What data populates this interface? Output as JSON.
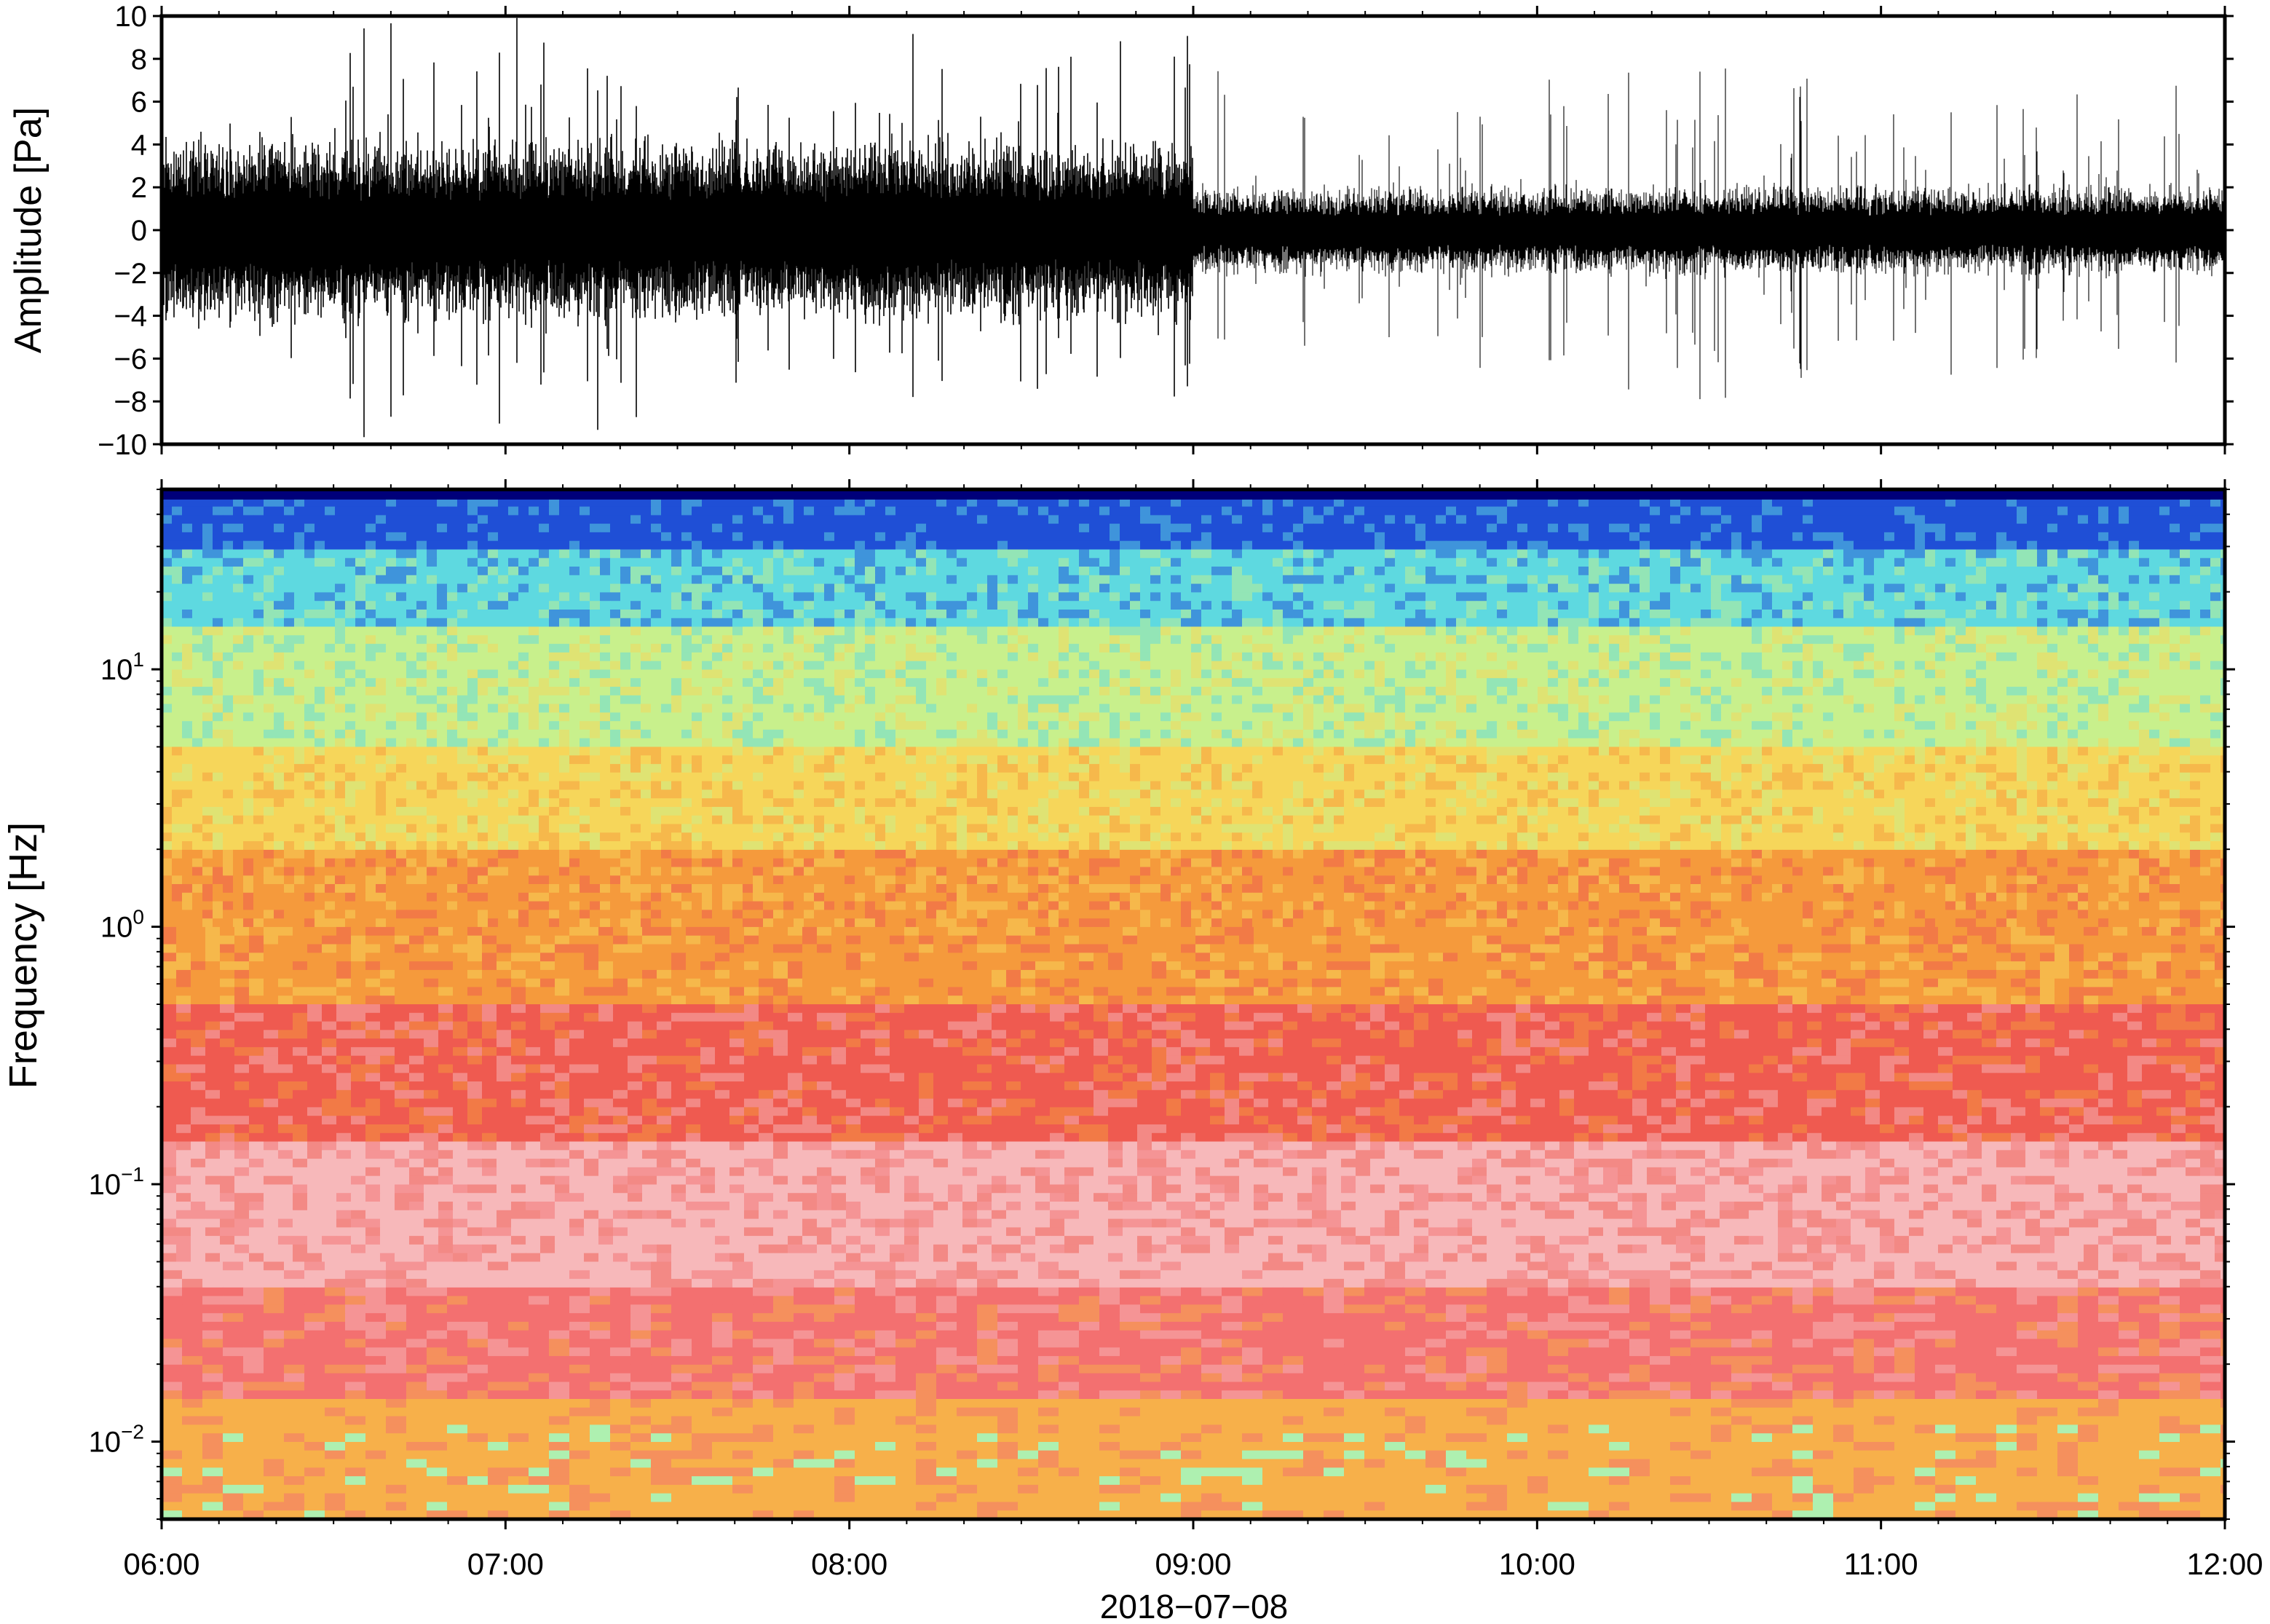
{
  "chart_data": [
    {
      "type": "line",
      "panel": "waveform",
      "ylabel": "Amplitude [Pa]",
      "ylim": [
        -10,
        10
      ],
      "yticks": [
        -10,
        -8,
        -6,
        -4,
        -2,
        0,
        2,
        4,
        6,
        8,
        10
      ],
      "ytick_labels": [
        "−10",
        "−8",
        "−6",
        "−4",
        "−2",
        "0",
        "2",
        "4",
        "6",
        "8",
        "10"
      ],
      "xlim": [
        "06:00",
        "12:00"
      ],
      "series": [
        {
          "segments": [
            {
              "from": "06:00",
              "to": "09:00",
              "typical_range": [
                -4,
                4
              ],
              "max_abs": 10
            },
            {
              "from": "09:00",
              "to": "12:00",
              "typical_range": [
                -2,
                2
              ],
              "max_abs": 8
            }
          ]
        }
      ],
      "grid": false,
      "line_color": "#000000"
    },
    {
      "type": "heatmap",
      "panel": "spectrogram",
      "ylabel": "Frequency [Hz]",
      "yscale": "log",
      "ylim": [
        0.005,
        50
      ],
      "yticks": [
        0.01,
        0.1,
        1,
        10
      ],
      "ytick_labels": [
        {
          "base": "10",
          "exp": "−2"
        },
        {
          "base": "10",
          "exp": "−1"
        },
        {
          "base": "10",
          "exp": "0"
        },
        {
          "base": "10",
          "exp": "1"
        }
      ],
      "xlabel": "2018−07−08",
      "xticks": [
        "06:00",
        "07:00",
        "08:00",
        "09:00",
        "10:00",
        "11:00",
        "12:00"
      ],
      "xlim": [
        "06:00",
        "12:00"
      ],
      "colormap": [
        "#00007a",
        "#1f4fd6",
        "#3fa0f0",
        "#5ed9e0",
        "#c8f08c",
        "#f6d65a",
        "#f59a3c",
        "#ef5a50",
        "#f7b8ba",
        "#f37070",
        "#f7a040",
        "#eae878",
        "#aef0b0"
      ],
      "bands_by_frequency": [
        {
          "f": [
            30,
            50
          ],
          "color": "#1f4fd6"
        },
        {
          "f": [
            15,
            30
          ],
          "color": "#5ed9e0"
        },
        {
          "f": [
            5,
            15
          ],
          "color": "#c8f08c"
        },
        {
          "f": [
            2,
            5
          ],
          "color": "#f6d65a"
        },
        {
          "f": [
            0.5,
            2
          ],
          "color": "#f59a3c"
        },
        {
          "f": [
            0.15,
            0.5
          ],
          "color": "#ef5a50"
        },
        {
          "f": [
            0.04,
            0.15
          ],
          "color": "#f7b8ba"
        },
        {
          "f": [
            0.015,
            0.04
          ],
          "color": "#f37070"
        },
        {
          "f": [
            0.005,
            0.015
          ],
          "color": "#f7b04a"
        }
      ],
      "grid": false
    }
  ]
}
